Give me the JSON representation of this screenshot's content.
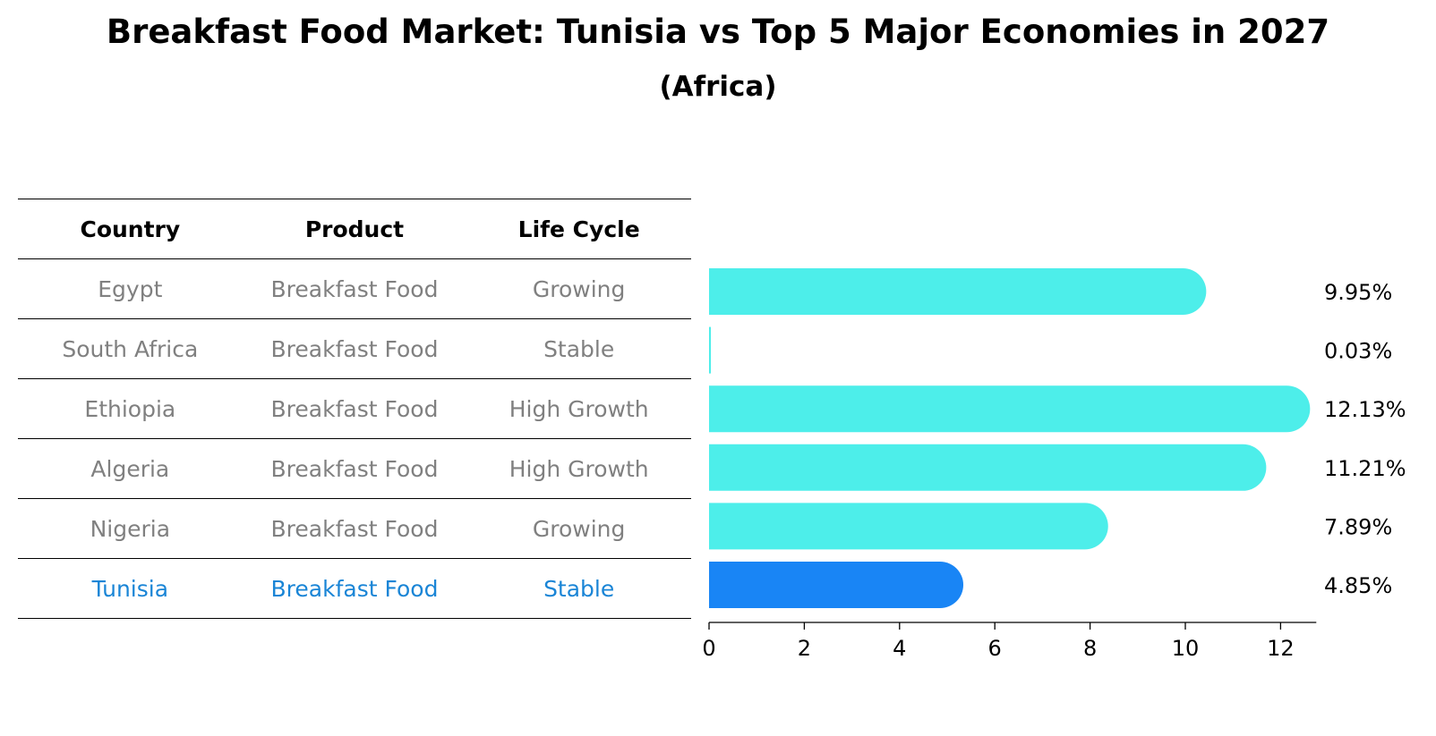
{
  "title": "Breakfast Food Market: Tunisia vs Top 5 Major Economies in 2027",
  "subtitle": "(Africa)",
  "table": {
    "headers": [
      "Country",
      "Product",
      "Life Cycle"
    ],
    "rows": [
      [
        "Egypt",
        "Breakfast Food",
        "Growing"
      ],
      [
        "South Africa",
        "Breakfast Food",
        "Stable"
      ],
      [
        "Ethiopia",
        "Breakfast Food",
        "High Growth"
      ],
      [
        "Algeria",
        "Breakfast Food",
        "High Growth"
      ],
      [
        "Nigeria",
        "Breakfast Food",
        "Growing"
      ],
      [
        "Tunisia",
        "Breakfast Food",
        "Stable"
      ]
    ],
    "highlight_row": 5,
    "row_text_color": "#808080",
    "highlight_text_color": "#1a85d6"
  },
  "chart_data": {
    "type": "bar",
    "orientation": "horizontal",
    "categories": [
      "Egypt",
      "South Africa",
      "Ethiopia",
      "Algeria",
      "Nigeria",
      "Tunisia"
    ],
    "values": [
      9.95,
      0.03,
      12.13,
      11.21,
      7.89,
      4.85
    ],
    "value_labels": [
      "9.95%",
      "0.03%",
      "12.13%",
      "11.21%",
      "7.89%",
      "4.85%"
    ],
    "xticks": [
      0,
      2,
      4,
      6,
      8,
      10,
      12
    ],
    "xlim": [
      0,
      12.75
    ],
    "highlight_index": 5,
    "bar_color": "#4deeea",
    "highlight_color": "#1985f5",
    "grid": false
  }
}
